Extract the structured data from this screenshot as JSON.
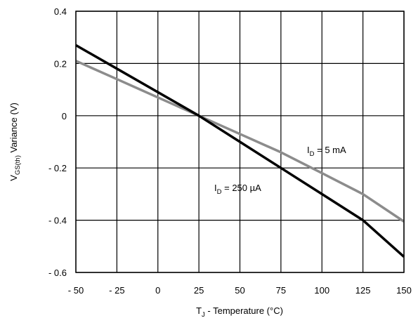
{
  "chart_data": {
    "type": "line",
    "xlabel": {
      "main": "T",
      "sub": "J",
      "rest": " - Temperature (°C)"
    },
    "ylabel": {
      "main": "V",
      "sub": "GS(th)",
      "rest": " Variance (V)"
    },
    "xlim": [
      -50,
      150
    ],
    "ylim": [
      -0.6,
      0.4
    ],
    "grid": true,
    "x_ticks": [
      -50,
      -25,
      0,
      25,
      50,
      75,
      100,
      125,
      150
    ],
    "x_tick_labels": [
      "- 50",
      "- 25",
      "0",
      "25",
      "50",
      "75",
      "100",
      "125",
      "150"
    ],
    "y_ticks": [
      0.4,
      0.2,
      0,
      -0.2,
      -0.4,
      -0.6
    ],
    "y_tick_labels": [
      "0.4",
      "0.2",
      "0",
      "- 0.2",
      "- 0.4",
      "- 0.6"
    ],
    "series": [
      {
        "name": {
          "main": "I",
          "sub": "D",
          "rest": " = 250 µA"
        },
        "color": "#000000",
        "x": [
          -50,
          -25,
          0,
          25,
          50,
          75,
          100,
          125,
          150
        ],
        "y": [
          0.27,
          0.18,
          0.09,
          0.0,
          -0.1,
          -0.2,
          -0.3,
          -0.4,
          -0.54
        ]
      },
      {
        "name": {
          "main": "I",
          "sub": "D",
          "rest": " = 5 mA"
        },
        "color": "#8c8c8c",
        "x": [
          -50,
          -25,
          0,
          25,
          50,
          75,
          100,
          125,
          150
        ],
        "y": [
          0.21,
          0.14,
          0.07,
          0.0,
          -0.07,
          -0.14,
          -0.22,
          -0.3,
          -0.405
        ]
      }
    ]
  }
}
